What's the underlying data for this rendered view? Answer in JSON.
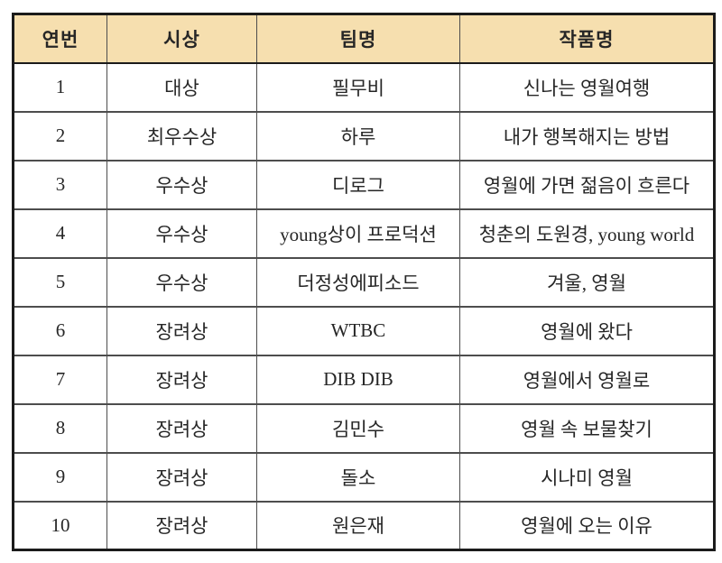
{
  "colors": {
    "header_bg": "#f6dfaf",
    "border_outer": "#1b1b1b",
    "border_inner": "#4d4d4d",
    "text": "#262626"
  },
  "table": {
    "headers": [
      "연번",
      "시상",
      "팀명",
      "작품명"
    ],
    "rows": [
      [
        "1",
        "대상",
        "필무비",
        "신나는 영월여행"
      ],
      [
        "2",
        "최우수상",
        "하루",
        "내가 행복해지는 방법"
      ],
      [
        "3",
        "우수상",
        "디로그",
        "영월에 가면 젊음이 흐른다"
      ],
      [
        "4",
        "우수상",
        "young상이 프로덕션",
        "청춘의 도원경, young world"
      ],
      [
        "5",
        "우수상",
        "더정성에피소드",
        "겨울, 영월"
      ],
      [
        "6",
        "장려상",
        "WTBC",
        "영월에 왔다"
      ],
      [
        "7",
        "장려상",
        "DIB DIB",
        "영월에서 영월로"
      ],
      [
        "8",
        "장려상",
        "김민수",
        "영월 속 보물찾기"
      ],
      [
        "9",
        "장려상",
        "돌소",
        "시나미 영월"
      ],
      [
        "10",
        "장려상",
        "원은재",
        "영월에 오는 이유"
      ]
    ]
  }
}
